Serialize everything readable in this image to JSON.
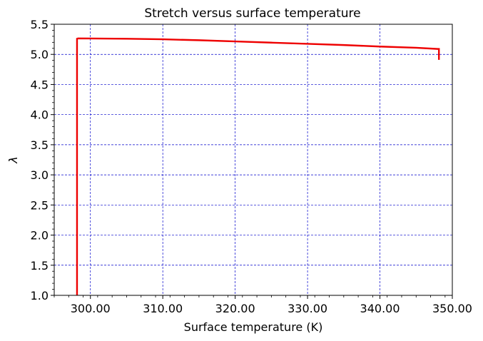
{
  "chart_data": {
    "type": "line",
    "title": "Stretch versus surface temperature",
    "xlabel": "Surface temperature (K)",
    "ylabel": "λ",
    "xlim": [
      295,
      350
    ],
    "ylim": [
      1.0,
      5.5
    ],
    "x_ticks": [
      300,
      310,
      320,
      330,
      340,
      350
    ],
    "x_tick_labels": [
      "300.00",
      "310.00",
      "320.00",
      "330.00",
      "340.00",
      "350.00"
    ],
    "y_ticks": [
      1.0,
      1.5,
      2.0,
      2.5,
      3.0,
      3.5,
      4.0,
      4.5,
      5.0,
      5.5
    ],
    "y_tick_labels": [
      "1.0",
      "1.5",
      "2.0",
      "2.5",
      "3.0",
      "3.5",
      "4.0",
      "4.5",
      "5.0",
      "5.5"
    ],
    "grid": true,
    "grid_color": "#0000cc",
    "series": [
      {
        "color": "#ee0000",
        "x": [
          298.15,
          298.15,
          298.3,
          305,
          310,
          315,
          320,
          325,
          330,
          335,
          340,
          345,
          348.0,
          348.15,
          348.15
        ],
        "y": [
          1.0,
          5.26,
          5.265,
          5.26,
          5.25,
          5.235,
          5.215,
          5.195,
          5.175,
          5.155,
          5.13,
          5.11,
          5.09,
          5.09,
          4.91
        ]
      }
    ]
  }
}
